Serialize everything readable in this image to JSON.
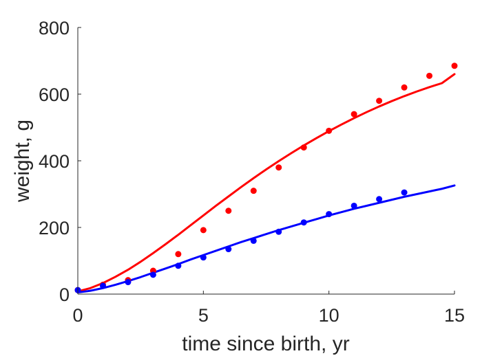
{
  "chart_data": {
    "type": "scatter",
    "title": "",
    "xlabel": "time since birth, yr",
    "ylabel": "weight, g",
    "xlim": [
      0,
      15
    ],
    "ylim": [
      0,
      800
    ],
    "xticks": [
      0,
      5,
      10,
      15
    ],
    "yticks": [
      0,
      200,
      400,
      600,
      800
    ],
    "xtick_labels": [
      "0",
      "5",
      "10",
      "15"
    ],
    "ytick_labels": [
      "0",
      "200",
      "400",
      "600",
      "800"
    ],
    "grid": false,
    "legend": false,
    "series": [
      {
        "kind": "points",
        "color": "#ff0000",
        "x": [
          0,
          1,
          2,
          3,
          4,
          5,
          6,
          7,
          8,
          9,
          10,
          11,
          12,
          13,
          14,
          15
        ],
        "y": [
          12,
          28,
          42,
          70,
          120,
          192,
          250,
          310,
          380,
          440,
          490,
          540,
          580,
          620,
          655,
          685
        ]
      },
      {
        "kind": "points",
        "color": "#0000ff",
        "x": [
          0,
          1,
          2,
          3,
          4,
          5,
          6,
          7,
          8,
          9,
          10,
          11,
          12,
          13
        ],
        "y": [
          12,
          25,
          36,
          58,
          85,
          110,
          135,
          160,
          187,
          215,
          240,
          265,
          285,
          305
        ]
      },
      {
        "kind": "line",
        "color": "#ff0000",
        "x": [
          0,
          0.5,
          1,
          1.5,
          2,
          2.5,
          3,
          3.5,
          4,
          4.5,
          5,
          5.5,
          6,
          6.5,
          7,
          7.5,
          8,
          8.5,
          9,
          9.5,
          10,
          10.5,
          11,
          11.5,
          12,
          12.5,
          13,
          13.5,
          14,
          14.5,
          15
        ],
        "y": [
          8,
          18,
          33,
          52,
          73,
          97,
          123,
          150,
          178,
          207,
          236,
          265,
          293,
          321,
          348,
          374,
          399,
          423,
          446,
          468,
          489,
          509,
          528,
          546,
          563,
          579,
          594,
          608,
          621,
          633,
          660
        ]
      },
      {
        "kind": "line",
        "color": "#0000ff",
        "x": [
          0,
          0.5,
          1,
          1.5,
          2,
          2.5,
          3,
          3.5,
          4,
          4.5,
          5,
          5.5,
          6,
          6.5,
          7,
          7.5,
          8,
          8.5,
          9,
          9.5,
          10,
          10.5,
          11,
          11.5,
          12,
          12.5,
          13,
          13.5,
          14,
          14.5,
          15
        ],
        "y": [
          5,
          10,
          18,
          28,
          39,
          51,
          64,
          77,
          90,
          104,
          117,
          130,
          143,
          156,
          168,
          180,
          192,
          203,
          214,
          225,
          236,
          246,
          256,
          265,
          274,
          283,
          292,
          300,
          308,
          316,
          326
        ]
      }
    ]
  }
}
